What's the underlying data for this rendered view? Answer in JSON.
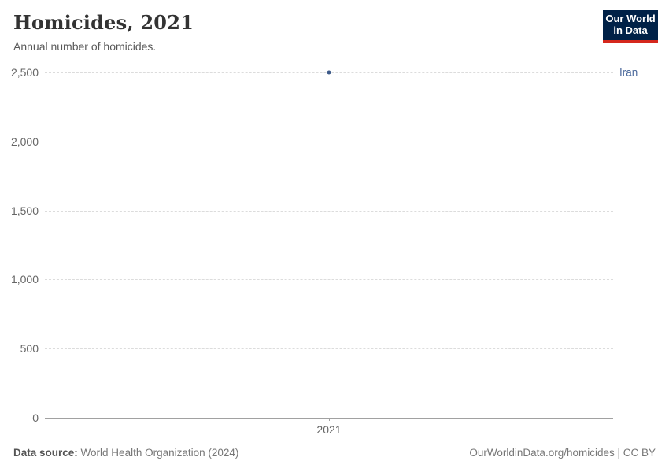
{
  "header": {
    "title": "Homicides, 2021",
    "subtitle": "Annual number of homicides."
  },
  "logo": {
    "line1": "Our World",
    "line2": "in Data",
    "bg_color": "#002147",
    "accent_color": "#d5271d"
  },
  "chart_data": {
    "type": "scatter",
    "title": "Homicides, 2021",
    "subtitle": "Annual number of homicides.",
    "x": [
      2021
    ],
    "xlabel": "",
    "ylabel": "",
    "series": [
      {
        "name": "Iran",
        "values": [
          2500
        ]
      }
    ],
    "ylim": [
      0,
      2500
    ],
    "yticks": [
      {
        "value": 0,
        "label": "0"
      },
      {
        "value": 500,
        "label": "500"
      },
      {
        "value": 1000,
        "label": "1,000"
      },
      {
        "value": 1500,
        "label": "1,500"
      },
      {
        "value": 2000,
        "label": "2,000"
      },
      {
        "value": 2500,
        "label": "2,500"
      }
    ],
    "xticks": [
      {
        "value": 2021,
        "label": "2021"
      }
    ],
    "grid": true,
    "legend": "entity-label-right",
    "point_color": "#3d5a89",
    "entity_label_color": "#4c6a9c"
  },
  "footer": {
    "source_label": "Data source:",
    "source_value": "World Health Organization (2024)",
    "attribution": "OurWorldinData.org/homicides | CC BY"
  }
}
